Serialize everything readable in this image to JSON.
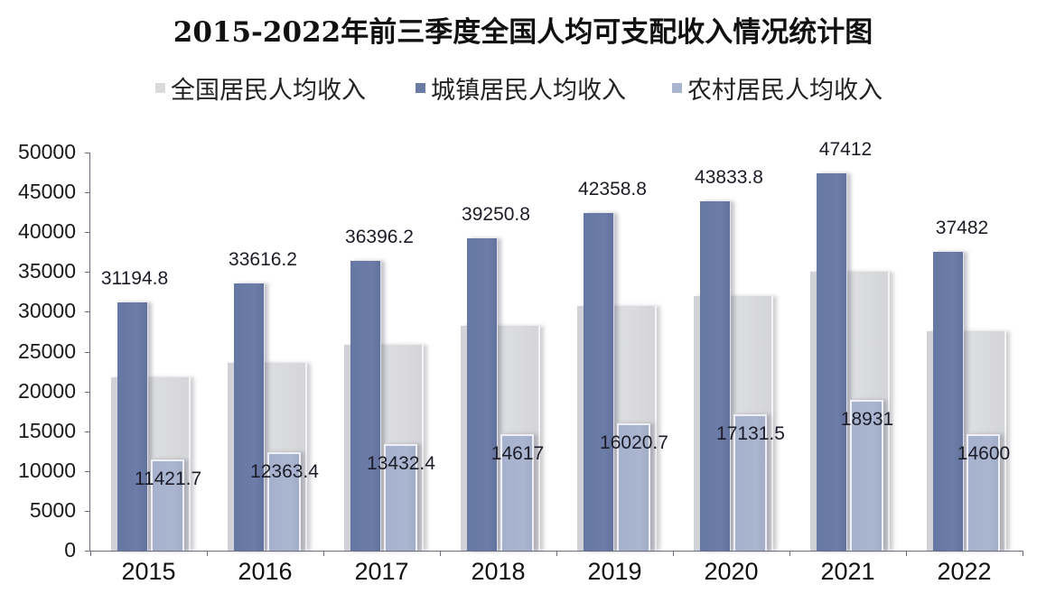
{
  "title": "2015-2022年前三季度全国人均可支配收入情况统计图",
  "legend": [
    {
      "label": "全国居民人均收入",
      "color": "#d9dadc"
    },
    {
      "label": "城镇居民人均收入",
      "color": "#6a7ba6"
    },
    {
      "label": "农村居民人均收入",
      "color": "#a9b4cf"
    }
  ],
  "y_axis": {
    "ticks": [
      "0",
      "5000",
      "10000",
      "15000",
      "20000",
      "25000",
      "30000",
      "35000",
      "40000",
      "45000",
      "50000"
    ]
  },
  "x_axis": {
    "categories": [
      "2015",
      "2016",
      "2017",
      "2018",
      "2019",
      "2020",
      "2021",
      "2022"
    ]
  },
  "data_labels": {
    "urban": [
      "31194.8",
      "33616.2",
      "36396.2",
      "39250.8",
      "42358.8",
      "43833.8",
      "47412",
      "37482"
    ],
    "rural": [
      "11421.7",
      "12363.4",
      "13432.4",
      "14617",
      "16020.7",
      "17131.5",
      "18931",
      "14600"
    ]
  },
  "chart_data": {
    "type": "bar",
    "title": "2015-2022年前三季度全国人均可支配收入情况统计图",
    "xlabel": "",
    "ylabel": "",
    "ylim": [
      0,
      50000
    ],
    "yticks": [
      0,
      5000,
      10000,
      15000,
      20000,
      25000,
      30000,
      35000,
      40000,
      45000,
      50000
    ],
    "grid": false,
    "legend_position": "top",
    "categories": [
      "2015",
      "2016",
      "2017",
      "2018",
      "2019",
      "2020",
      "2021",
      "2022"
    ],
    "series": [
      {
        "name": "全国居民人均收入",
        "color": "#d9dadc",
        "labeled": false,
        "values": [
          21800,
          23600,
          25900,
          28200,
          30700,
          32000,
          35000,
          27500
        ]
      },
      {
        "name": "城镇居民人均收入",
        "color": "#6a7ba6",
        "labeled": true,
        "values": [
          31194.8,
          33616.2,
          36396.2,
          39250.8,
          42358.8,
          43833.8,
          47412,
          37482
        ]
      },
      {
        "name": "农村居民人均收入",
        "color": "#a9b4cf",
        "labeled": true,
        "values": [
          11421.7,
          12363.4,
          13432.4,
          14617,
          16020.7,
          17131.5,
          18931,
          14600
        ]
      }
    ]
  }
}
